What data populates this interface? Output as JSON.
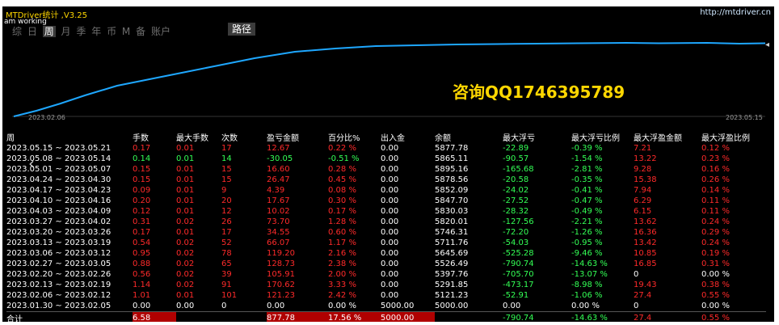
{
  "app": {
    "title": "MTDriver统计 ,V3.25",
    "url": "http://mtdriver.cn",
    "status": "am working",
    "tabs": [
      "综",
      "日",
      "周",
      "月",
      "季",
      "年",
      "币",
      "M",
      "备",
      "账户"
    ],
    "active_tab": "周",
    "route_button": "路径"
  },
  "chart": {
    "type": "line",
    "ad_text": "咨询QQ1746395789",
    "start_date": "2023.02.06",
    "end_date": "2023.05.15",
    "line_color": "#1ea7ff"
  },
  "table": {
    "headers": [
      "周",
      "手数",
      "最大手数",
      "次数",
      "盈亏金额",
      "百分比%",
      "出入金",
      "余额",
      "最大浮亏",
      "最大浮亏比例",
      "最大浮盈金额",
      "最大浮盈比例"
    ],
    "rows": [
      [
        "2023.05.15 ~ 2023.05.21",
        "0.17",
        "0.01",
        "17",
        "12.67",
        "0.22 %",
        "0.00",
        "5877.78",
        "-22.89",
        "-0.39 %",
        "7.21",
        "0.12 %"
      ],
      [
        "2023.05.08 ~ 2023.05.14",
        "0.14",
        "0.01",
        "14",
        "-30.05",
        "-0.51 %",
        "0.00",
        "5865.11",
        "-90.57",
        "-1.54 %",
        "13.22",
        "0.23 %"
      ],
      [
        "2023.05.01 ~ 2023.05.07",
        "0.15",
        "0.01",
        "15",
        "16.60",
        "0.28 %",
        "0.00",
        "5895.16",
        "-165.68",
        "-2.81 %",
        "9.28",
        "0.16 %"
      ],
      [
        "2023.04.24 ~ 2023.04.30",
        "0.15",
        "0.01",
        "15",
        "26.47",
        "0.45 %",
        "0.00",
        "5878.56",
        "-20.58",
        "-0.35 %",
        "15.38",
        "0.26 %"
      ],
      [
        "2023.04.17 ~ 2023.04.23",
        "0.09",
        "0.01",
        "9",
        "4.39",
        "0.08 %",
        "0.00",
        "5852.09",
        "-24.02",
        "-0.41 %",
        "7.94",
        "0.14 %"
      ],
      [
        "2023.04.10 ~ 2023.04.16",
        "0.20",
        "0.01",
        "20",
        "17.67",
        "0.30 %",
        "0.00",
        "5847.70",
        "-27.52",
        "-0.47 %",
        "6.29",
        "0.11 %"
      ],
      [
        "2023.04.03 ~ 2023.04.09",
        "0.12",
        "0.01",
        "12",
        "10.02",
        "0.17 %",
        "0.00",
        "5830.03",
        "-28.32",
        "-0.49 %",
        "6.15",
        "0.11 %"
      ],
      [
        "2023.03.27 ~ 2023.04.02",
        "0.31",
        "0.02",
        "26",
        "73.70",
        "1.28 %",
        "0.00",
        "5820.01",
        "-127.56",
        "-2.21 %",
        "13.62",
        "0.24 %"
      ],
      [
        "2023.03.20 ~ 2023.03.26",
        "0.17",
        "0.01",
        "17",
        "34.55",
        "0.60 %",
        "0.00",
        "5746.31",
        "-72.20",
        "-1.26 %",
        "16.36",
        "0.29 %"
      ],
      [
        "2023.03.13 ~ 2023.03.19",
        "0.54",
        "0.02",
        "52",
        "66.07",
        "1.17 %",
        "0.00",
        "5711.76",
        "-54.03",
        "-0.95 %",
        "13.42",
        "0.24 %"
      ],
      [
        "2023.03.06 ~ 2023.03.12",
        "0.95",
        "0.02",
        "78",
        "119.20",
        "2.16 %",
        "0.00",
        "5645.69",
        "-525.28",
        "-9.46 %",
        "10.85",
        "0.19 %"
      ],
      [
        "2023.02.27 ~ 2023.03.05",
        "0.88",
        "0.02",
        "65",
        "128.73",
        "2.38 %",
        "0.00",
        "5526.49",
        "-790.74",
        "-14.63 %",
        "16.85",
        "0.31 %"
      ],
      [
        "2023.02.20 ~ 2023.02.26",
        "0.56",
        "0.02",
        "39",
        "105.91",
        "2.00 %",
        "0.00",
        "5397.76",
        "-705.70",
        "-13.07 %",
        "0",
        "0.00 %"
      ],
      [
        "2023.02.13 ~ 2023.02.19",
        "1.14",
        "0.02",
        "91",
        "170.62",
        "3.33 %",
        "0.00",
        "5291.85",
        "-473.17",
        "-8.98 %",
        "19.43",
        "0.38 %"
      ],
      [
        "2023.02.06 ~ 2023.02.12",
        "1.01",
        "0.01",
        "101",
        "121.23",
        "2.42 %",
        "0.00",
        "5121.23",
        "-52.91",
        "-1.06 %",
        "27.4",
        "0.55 %"
      ],
      [
        "2023.01.30 ~ 2023.02.05",
        "0.00",
        "0.00",
        "0",
        "0.00",
        "0.00 %",
        "5000.00",
        "5000.00",
        "0.00",
        "0.00 %",
        "0",
        "0.00 %"
      ]
    ],
    "total": [
      "合计",
      "6.58",
      "",
      "",
      "877.78",
      "17.56 %",
      "5000.00",
      "",
      "-790.74",
      "-14.63 %",
      "27.4",
      "0.55 %"
    ]
  }
}
